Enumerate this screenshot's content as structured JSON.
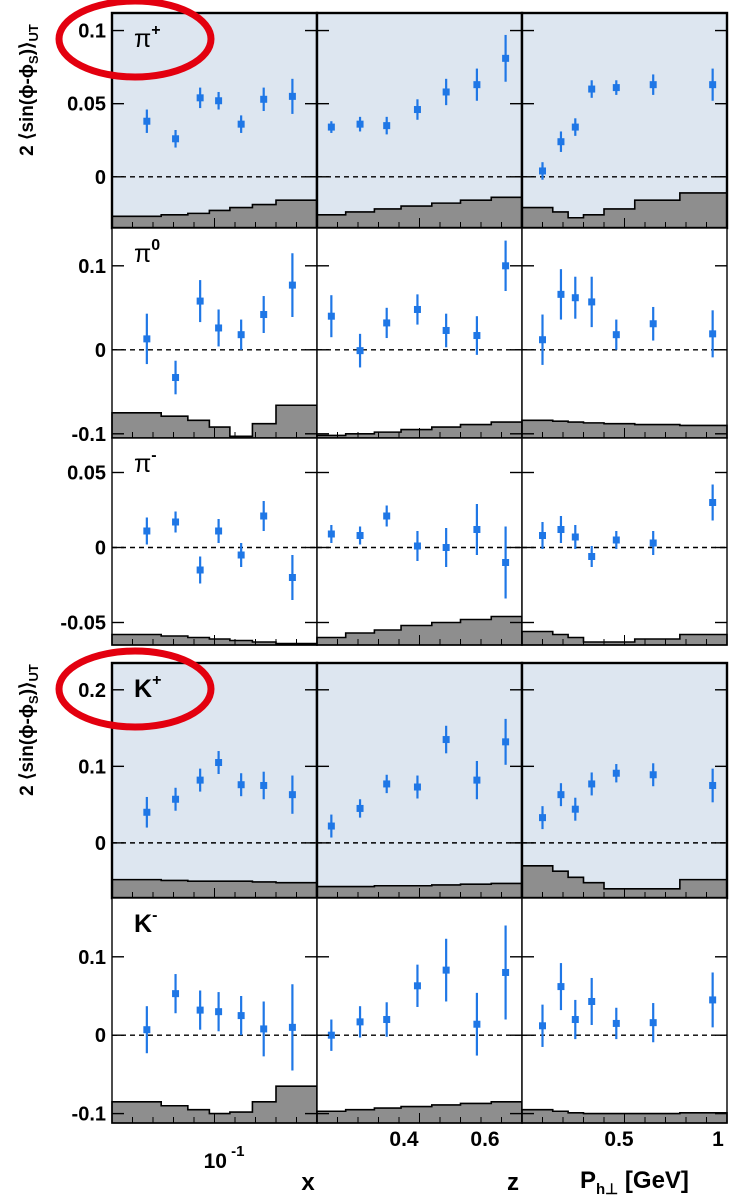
{
  "ylabel": "2 ⟨sin(ϕ-ϕ",
  "ylabel_sub": "S",
  "ylabel_tail": ")⟩",
  "ylabel_subscript": "UT",
  "columns": [
    "x",
    "z",
    "P",
    "h⊥",
    "[GeV]"
  ],
  "colors": {
    "points": "#1f77e6",
    "shaded_panel": "#dde6f0",
    "band": "#8e8e8e",
    "circle": "#e3000f"
  },
  "chart_data": [
    {
      "type": "scatter",
      "name": "pi-plus",
      "hadron": "π",
      "charge": "+",
      "shaded": true,
      "circled": true,
      "ylim": [
        -0.035,
        0.112
      ],
      "yticks": [
        {
          "v": 0.1,
          "label": "0.1"
        },
        {
          "v": 0.05,
          "label": "0.05"
        },
        {
          "v": 0,
          "label": "0"
        }
      ],
      "x": {
        "points": [
          {
            "x": 1,
            "y": 0.038,
            "e": 0.008
          },
          {
            "x": 2,
            "y": 0.026,
            "e": 0.006
          },
          {
            "x": 3,
            "y": 0.054,
            "e": 0.007
          },
          {
            "x": 4,
            "y": 0.052,
            "e": 0.006
          },
          {
            "x": 5,
            "y": 0.036,
            "e": 0.006
          },
          {
            "x": 6,
            "y": 0.053,
            "e": 0.008
          },
          {
            "x": 7,
            "y": 0.055,
            "e": 0.012
          }
        ],
        "band": [
          -0.027,
          -0.026,
          -0.025,
          -0.023,
          -0.021,
          -0.019,
          -0.016
        ]
      },
      "z": {
        "points": [
          {
            "x": 1,
            "y": 0.034,
            "e": 0.004
          },
          {
            "x": 2,
            "y": 0.036,
            "e": 0.005
          },
          {
            "x": 3,
            "y": 0.035,
            "e": 0.006
          },
          {
            "x": 4,
            "y": 0.046,
            "e": 0.007
          },
          {
            "x": 5,
            "y": 0.058,
            "e": 0.009
          },
          {
            "x": 6,
            "y": 0.063,
            "e": 0.011
          },
          {
            "x": 7,
            "y": 0.081,
            "e": 0.016
          }
        ],
        "band": [
          -0.026,
          -0.024,
          -0.022,
          -0.02,
          -0.018,
          -0.016,
          -0.014
        ]
      },
      "pt": {
        "points": [
          {
            "x": 1,
            "y": 0.004,
            "e": 0.006
          },
          {
            "x": 2,
            "y": 0.024,
            "e": 0.007
          },
          {
            "x": 3,
            "y": 0.034,
            "e": 0.006
          },
          {
            "x": 4,
            "y": 0.06,
            "e": 0.006
          },
          {
            "x": 5,
            "y": 0.061,
            "e": 0.005
          },
          {
            "x": 6,
            "y": 0.063,
            "e": 0.007
          },
          {
            "x": 7,
            "y": 0.063,
            "e": 0.011
          }
        ],
        "band": [
          -0.021,
          -0.024,
          -0.028,
          -0.026,
          -0.022,
          -0.016,
          -0.011
        ]
      }
    },
    {
      "type": "scatter",
      "name": "pi-zero",
      "hadron": "π",
      "charge": "0",
      "shaded": false,
      "circled": false,
      "ylim": [
        -0.105,
        0.145
      ],
      "yticks": [
        {
          "v": 0.1,
          "label": "0.1"
        },
        {
          "v": 0,
          "label": "0"
        },
        {
          "v": -0.1,
          "label": "-0.1"
        }
      ],
      "x": {
        "points": [
          {
            "x": 1,
            "y": 0.013,
            "e": 0.03
          },
          {
            "x": 2,
            "y": -0.033,
            "e": 0.02
          },
          {
            "x": 3,
            "y": 0.058,
            "e": 0.025
          },
          {
            "x": 4,
            "y": 0.026,
            "e": 0.022
          },
          {
            "x": 5,
            "y": 0.018,
            "e": 0.018
          },
          {
            "x": 6,
            "y": 0.042,
            "e": 0.022
          },
          {
            "x": 7,
            "y": 0.077,
            "e": 0.038
          }
        ],
        "band": [
          -0.075,
          -0.079,
          -0.084,
          -0.092,
          -0.103,
          -0.088,
          -0.066
        ]
      },
      "z": {
        "points": [
          {
            "x": 1,
            "y": 0.04,
            "e": 0.025
          },
          {
            "x": 2,
            "y": -0.001,
            "e": 0.02
          },
          {
            "x": 3,
            "y": 0.032,
            "e": 0.018
          },
          {
            "x": 4,
            "y": 0.048,
            "e": 0.018
          },
          {
            "x": 5,
            "y": 0.023,
            "e": 0.02
          },
          {
            "x": 6,
            "y": 0.017,
            "e": 0.023
          },
          {
            "x": 7,
            "y": 0.1,
            "e": 0.03
          }
        ],
        "band": [
          -0.102,
          -0.1,
          -0.098,
          -0.095,
          -0.092,
          -0.089,
          -0.086
        ]
      },
      "pt": {
        "points": [
          {
            "x": 1,
            "y": 0.012,
            "e": 0.03
          },
          {
            "x": 2,
            "y": 0.066,
            "e": 0.03
          },
          {
            "x": 3,
            "y": 0.062,
            "e": 0.025
          },
          {
            "x": 4,
            "y": 0.057,
            "e": 0.03
          },
          {
            "x": 5,
            "y": 0.018,
            "e": 0.018
          },
          {
            "x": 6,
            "y": 0.031,
            "e": 0.02
          },
          {
            "x": 7,
            "y": 0.019,
            "e": 0.028
          }
        ],
        "band": [
          -0.084,
          -0.085,
          -0.086,
          -0.087,
          -0.088,
          -0.089,
          -0.09
        ]
      }
    },
    {
      "type": "scatter",
      "name": "pi-minus",
      "hadron": "π",
      "charge": "-",
      "shaded": false,
      "circled": false,
      "ylim": [
        -0.065,
        0.073
      ],
      "yticks": [
        {
          "v": 0.05,
          "label": "0.05"
        },
        {
          "v": 0,
          "label": "0"
        },
        {
          "v": -0.05,
          "label": "-0.05"
        }
      ],
      "x": {
        "points": [
          {
            "x": 1,
            "y": 0.011,
            "e": 0.009
          },
          {
            "x": 2,
            "y": 0.017,
            "e": 0.007
          },
          {
            "x": 3,
            "y": -0.015,
            "e": 0.009
          },
          {
            "x": 4,
            "y": 0.011,
            "e": 0.008
          },
          {
            "x": 5,
            "y": -0.005,
            "e": 0.008
          },
          {
            "x": 6,
            "y": 0.021,
            "e": 0.01
          },
          {
            "x": 7,
            "y": -0.02,
            "e": 0.015
          }
        ],
        "band": [
          -0.058,
          -0.059,
          -0.06,
          -0.061,
          -0.062,
          -0.063,
          -0.064
        ]
      },
      "z": {
        "points": [
          {
            "x": 1,
            "y": 0.009,
            "e": 0.006
          },
          {
            "x": 2,
            "y": 0.008,
            "e": 0.006
          },
          {
            "x": 3,
            "y": 0.021,
            "e": 0.007
          },
          {
            "x": 4,
            "y": 0.001,
            "e": 0.01
          },
          {
            "x": 5,
            "y": 0.0,
            "e": 0.013
          },
          {
            "x": 6,
            "y": 0.012,
            "e": 0.017
          },
          {
            "x": 7,
            "y": -0.01,
            "e": 0.024
          }
        ],
        "band": [
          -0.06,
          -0.057,
          -0.055,
          -0.052,
          -0.05,
          -0.048,
          -0.046
        ]
      },
      "pt": {
        "points": [
          {
            "x": 1,
            "y": 0.008,
            "e": 0.009
          },
          {
            "x": 2,
            "y": 0.012,
            "e": 0.009
          },
          {
            "x": 3,
            "y": 0.007,
            "e": 0.008
          },
          {
            "x": 4,
            "y": -0.006,
            "e": 0.007
          },
          {
            "x": 5,
            "y": 0.005,
            "e": 0.006
          },
          {
            "x": 6,
            "y": 0.003,
            "e": 0.008
          },
          {
            "x": 7,
            "y": 0.03,
            "e": 0.012
          }
        ],
        "band": [
          -0.056,
          -0.058,
          -0.06,
          -0.063,
          -0.063,
          -0.061,
          -0.058
        ]
      }
    },
    {
      "type": "scatter",
      "name": "k-plus",
      "hadron": "K",
      "charge": "+",
      "shaded": true,
      "circled": true,
      "ylim": [
        -0.072,
        0.235
      ],
      "yticks": [
        {
          "v": 0.2,
          "label": "0.2"
        },
        {
          "v": 0.1,
          "label": "0.1"
        },
        {
          "v": 0,
          "label": "0"
        }
      ],
      "x": {
        "points": [
          {
            "x": 1,
            "y": 0.04,
            "e": 0.02
          },
          {
            "x": 2,
            "y": 0.057,
            "e": 0.015
          },
          {
            "x": 3,
            "y": 0.082,
            "e": 0.015
          },
          {
            "x": 4,
            "y": 0.105,
            "e": 0.015
          },
          {
            "x": 5,
            "y": 0.076,
            "e": 0.015
          },
          {
            "x": 6,
            "y": 0.075,
            "e": 0.018
          },
          {
            "x": 7,
            "y": 0.063,
            "e": 0.025
          }
        ],
        "band": [
          -0.048,
          -0.049,
          -0.05,
          -0.05,
          -0.05,
          -0.051,
          -0.052
        ]
      },
      "z": {
        "points": [
          {
            "x": 1,
            "y": 0.022,
            "e": 0.015
          },
          {
            "x": 2,
            "y": 0.045,
            "e": 0.012
          },
          {
            "x": 3,
            "y": 0.077,
            "e": 0.012
          },
          {
            "x": 4,
            "y": 0.073,
            "e": 0.015
          },
          {
            "x": 5,
            "y": 0.135,
            "e": 0.018
          },
          {
            "x": 6,
            "y": 0.082,
            "e": 0.025
          },
          {
            "x": 7,
            "y": 0.132,
            "e": 0.03
          }
        ],
        "band": [
          -0.057,
          -0.057,
          -0.056,
          -0.056,
          -0.055,
          -0.054,
          -0.053
        ]
      },
      "pt": {
        "points": [
          {
            "x": 1,
            "y": 0.033,
            "e": 0.015
          },
          {
            "x": 2,
            "y": 0.063,
            "e": 0.015
          },
          {
            "x": 3,
            "y": 0.044,
            "e": 0.015
          },
          {
            "x": 4,
            "y": 0.077,
            "e": 0.015
          },
          {
            "x": 5,
            "y": 0.091,
            "e": 0.012
          },
          {
            "x": 6,
            "y": 0.089,
            "e": 0.015
          },
          {
            "x": 7,
            "y": 0.075,
            "e": 0.022
          }
        ],
        "band": [
          -0.03,
          -0.037,
          -0.045,
          -0.052,
          -0.06,
          -0.06,
          -0.048
        ]
      }
    },
    {
      "type": "scatter",
      "name": "k-minus",
      "hadron": "K",
      "charge": "-",
      "shaded": false,
      "circled": false,
      "ylim": [
        -0.112,
        0.175
      ],
      "yticks": [
        {
          "v": 0.1,
          "label": "0.1"
        },
        {
          "v": 0,
          "label": "0"
        },
        {
          "v": -0.1,
          "label": "-0.1"
        }
      ],
      "x": {
        "points": [
          {
            "x": 1,
            "y": 0.007,
            "e": 0.03
          },
          {
            "x": 2,
            "y": 0.053,
            "e": 0.025
          },
          {
            "x": 3,
            "y": 0.032,
            "e": 0.025
          },
          {
            "x": 4,
            "y": 0.03,
            "e": 0.025
          },
          {
            "x": 5,
            "y": 0.025,
            "e": 0.025
          },
          {
            "x": 6,
            "y": 0.008,
            "e": 0.035
          },
          {
            "x": 7,
            "y": 0.01,
            "e": 0.055
          }
        ],
        "band": [
          -0.085,
          -0.09,
          -0.095,
          -0.1,
          -0.098,
          -0.085,
          -0.065
        ]
      },
      "z": {
        "points": [
          {
            "x": 1,
            "y": 0.0,
            "e": 0.02
          },
          {
            "x": 2,
            "y": 0.017,
            "e": 0.02
          },
          {
            "x": 3,
            "y": 0.02,
            "e": 0.022
          },
          {
            "x": 4,
            "y": 0.063,
            "e": 0.027
          },
          {
            "x": 5,
            "y": 0.083,
            "e": 0.04
          },
          {
            "x": 6,
            "y": 0.014,
            "e": 0.04
          },
          {
            "x": 7,
            "y": 0.08,
            "e": 0.06
          }
        ],
        "band": [
          -0.097,
          -0.095,
          -0.093,
          -0.091,
          -0.089,
          -0.087,
          -0.085
        ]
      },
      "pt": {
        "points": [
          {
            "x": 1,
            "y": 0.012,
            "e": 0.027
          },
          {
            "x": 2,
            "y": 0.062,
            "e": 0.03
          },
          {
            "x": 3,
            "y": 0.02,
            "e": 0.025
          },
          {
            "x": 4,
            "y": 0.043,
            "e": 0.03
          },
          {
            "x": 5,
            "y": 0.015,
            "e": 0.02
          },
          {
            "x": 6,
            "y": 0.016,
            "e": 0.025
          },
          {
            "x": 7,
            "y": 0.045,
            "e": 0.035
          }
        ],
        "band": [
          -0.095,
          -0.097,
          -0.099,
          -0.1,
          -0.1,
          -0.1,
          -0.099
        ]
      }
    }
  ],
  "x_axis": {
    "x": {
      "label": "x",
      "tick_base": "10",
      "tick_exp": "-1"
    },
    "z": {
      "label": "z",
      "ticks": [
        "0.4",
        "0.6"
      ]
    },
    "pt": {
      "label_main": "P",
      "label_sub": "h⊥",
      "label_unit": "[GeV]",
      "ticks": [
        "0.5",
        "1"
      ]
    }
  }
}
